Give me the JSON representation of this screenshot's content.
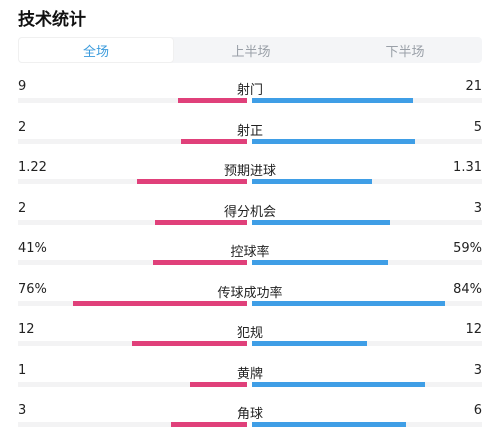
{
  "header": {
    "title": "技术统计"
  },
  "tabs": [
    {
      "label": "全场",
      "active": true
    },
    {
      "label": "上半场",
      "active": false
    },
    {
      "label": "下半场",
      "active": false
    }
  ],
  "colors": {
    "home": "#e0407a",
    "away": "#3f9ee6",
    "active_tab": "#3b9bdc"
  },
  "stats": [
    {
      "label": "射门",
      "home": "9",
      "away": "21",
      "home_fill": 0.3,
      "away_fill": 0.7
    },
    {
      "label": "射正",
      "home": "2",
      "away": "5",
      "home_fill": 0.29,
      "away_fill": 0.71
    },
    {
      "label": "预期进球",
      "home": "1.22",
      "away": "1.31",
      "home_fill": 0.48,
      "away_fill": 0.52
    },
    {
      "label": "得分机会",
      "home": "2",
      "away": "3",
      "home_fill": 0.4,
      "away_fill": 0.6
    },
    {
      "label": "控球率",
      "home": "41%",
      "away": "59%",
      "home_fill": 0.41,
      "away_fill": 0.59
    },
    {
      "label": "传球成功率",
      "home": "76%",
      "away": "84%",
      "home_fill": 0.76,
      "away_fill": 0.84
    },
    {
      "label": "犯规",
      "home": "12",
      "away": "12",
      "home_fill": 0.5,
      "away_fill": 0.5
    },
    {
      "label": "黄牌",
      "home": "1",
      "away": "3",
      "home_fill": 0.25,
      "away_fill": 0.75
    },
    {
      "label": "角球",
      "home": "3",
      "away": "6",
      "home_fill": 0.33,
      "away_fill": 0.67
    }
  ]
}
